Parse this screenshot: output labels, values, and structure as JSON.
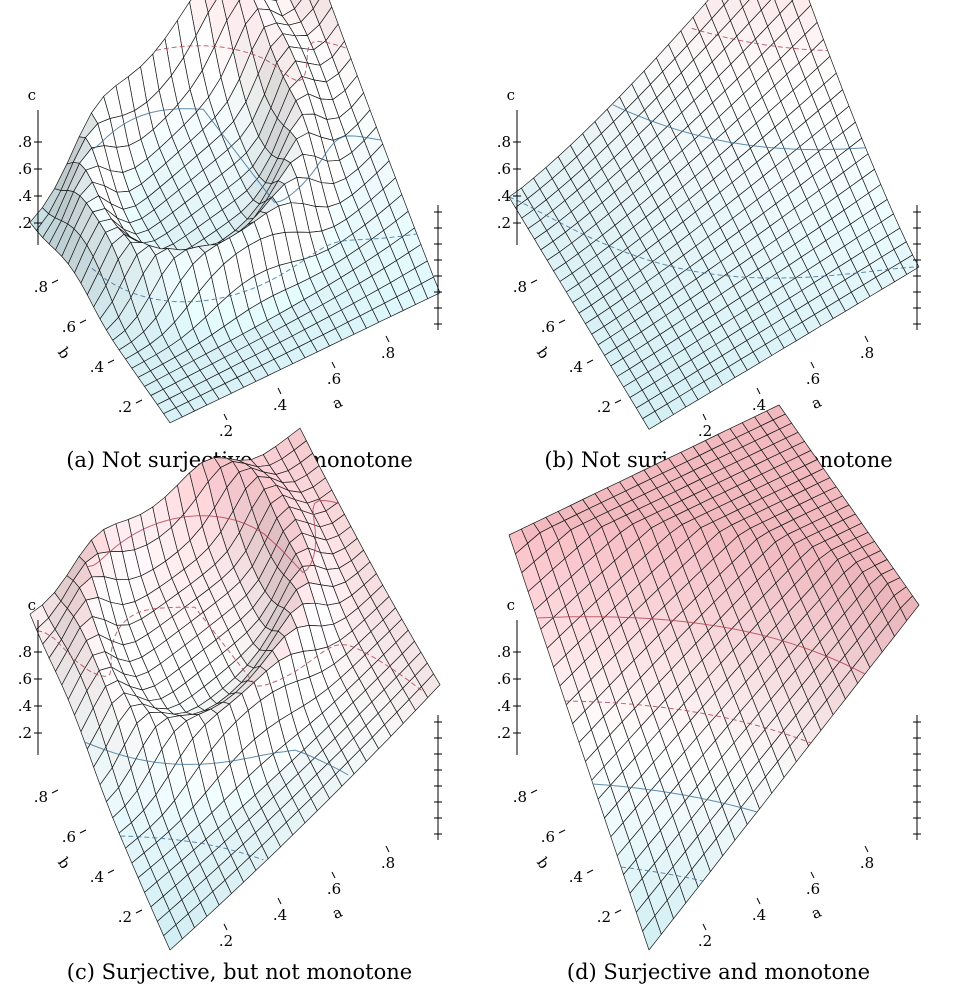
{
  "chart_data": [
    {
      "type": "surface",
      "caption": "(a) Not surjective, not monotone",
      "function": "not-surjective-not-monotone",
      "axes": {
        "x": {
          "label": "a",
          "ticks": [
            ".2",
            ".4",
            ".6",
            ".8"
          ]
        },
        "y": {
          "label": "b",
          "ticks": [
            ".2",
            ".4",
            ".6",
            ".8"
          ]
        },
        "z": {
          "label": "c",
          "ticks": [
            ".2",
            ".4",
            ".6",
            ".8"
          ]
        }
      },
      "contours": [
        0.2,
        0.4,
        0.6,
        0.8
      ],
      "grid_n": 22,
      "colors": {
        "low": "#cfeef4",
        "mid": "#ffffff",
        "high": "#f7c9cc"
      }
    },
    {
      "type": "surface",
      "caption": "(b) Not surjective, but monotone",
      "function": "not-surjective-monotone",
      "axes": {
        "x": {
          "label": "a",
          "ticks": [
            ".2",
            ".4",
            ".6",
            ".8"
          ]
        },
        "y": {
          "label": "b",
          "ticks": [
            ".2",
            ".4",
            ".6",
            ".8"
          ]
        },
        "z": {
          "label": "c",
          "ticks": [
            ".2",
            ".4",
            ".6",
            ".8"
          ]
        }
      },
      "contours": [
        0.2,
        0.4,
        0.6,
        0.8
      ],
      "grid_n": 22,
      "colors": {
        "low": "#cfeef4",
        "mid": "#ffffff",
        "high": "#f7c9cc"
      }
    },
    {
      "type": "surface",
      "caption": "(c) Surjective, but not monotone",
      "function": "surjective-not-monotone",
      "axes": {
        "x": {
          "label": "a",
          "ticks": [
            ".2",
            ".4",
            ".6",
            ".8"
          ]
        },
        "y": {
          "label": "b",
          "ticks": [
            ".2",
            ".4",
            ".6",
            ".8"
          ]
        },
        "z": {
          "label": "c",
          "ticks": [
            ".2",
            ".4",
            ".6",
            ".8"
          ]
        }
      },
      "contours": [
        0.2,
        0.4,
        0.6,
        0.8
      ],
      "grid_n": 22,
      "colors": {
        "low": "#cfeef4",
        "mid": "#ffffff",
        "high": "#f2b9bf"
      }
    },
    {
      "type": "surface",
      "caption": "(d) Surjective and monotone",
      "function": "surjective-monotone",
      "axes": {
        "x": {
          "label": "a",
          "ticks": [
            ".2",
            ".4",
            ".6",
            ".8"
          ]
        },
        "y": {
          "label": "b",
          "ticks": [
            ".2",
            ".4",
            ".6",
            ".8"
          ]
        },
        "z": {
          "label": "c",
          "ticks": [
            ".2",
            ".4",
            ".6",
            ".8"
          ]
        }
      },
      "contours": [
        0.2,
        0.4,
        0.6,
        0.8
      ],
      "grid_n": 22,
      "colors": {
        "low": "#cfeef4",
        "mid": "#ffffff",
        "high": "#f2b9bf"
      }
    }
  ]
}
